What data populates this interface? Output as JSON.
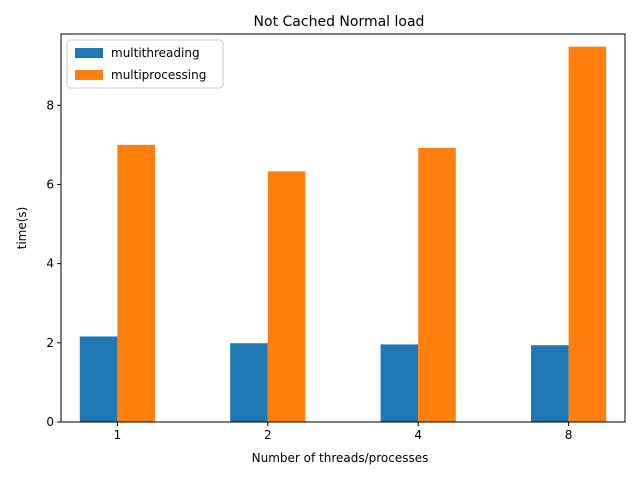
{
  "chart_data": {
    "type": "bar",
    "title": "Not Cached Normal load",
    "xlabel": "Number of threads/processes",
    "ylabel": "time(s)",
    "categories": [
      "1",
      "2",
      "4",
      "8"
    ],
    "series": [
      {
        "name": "multithreading",
        "color": "#1f77b4",
        "values": [
          2.16,
          1.99,
          1.96,
          1.94
        ]
      },
      {
        "name": "multiprocessing",
        "color": "#ff7f0e",
        "values": [
          7.0,
          6.33,
          6.92,
          9.48
        ]
      }
    ],
    "ylim": [
      0,
      9.8
    ],
    "yticks": [
      0,
      2,
      4,
      6,
      8
    ],
    "legend_position": "top-left",
    "grid": false
  }
}
